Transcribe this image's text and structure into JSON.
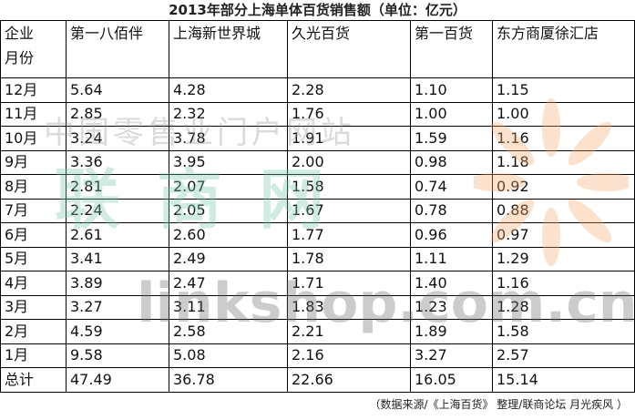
{
  "title": "2013年部分上海单体百货销售额（单位：亿元）",
  "table": {
    "corner": [
      "企业",
      "月份"
    ],
    "columns": [
      "第一八佰伴",
      "上海新世界城",
      "久光百货",
      "第一百货",
      "东方商厦徐汇店"
    ],
    "rows": [
      [
        "12月",
        "5.64",
        "4.28",
        "2.28",
        "1.10",
        "1.15"
      ],
      [
        "11月",
        "2.85",
        "2.32",
        "1.76",
        "1.00",
        "1.00"
      ],
      [
        "10月",
        "3.24",
        "3.78",
        "1.91",
        "1.59",
        "1.16"
      ],
      [
        "9月",
        "3.36",
        "3.95",
        "2.00",
        "0.98",
        "1.18"
      ],
      [
        "8月",
        "2.81",
        "2.07",
        "1.58",
        "0.74",
        "0.92"
      ],
      [
        "7月",
        "2.24",
        "2.05",
        "1.67",
        "0.78",
        "0.88"
      ],
      [
        "6月",
        "2.61",
        "2.60",
        "1.77",
        "0.96",
        "0.97"
      ],
      [
        "5月",
        "3.41",
        "2.49",
        "1.78",
        "1.11",
        "1.29"
      ],
      [
        "4月",
        "3.89",
        "2.47",
        "1.71",
        "1.40",
        "1.16"
      ],
      [
        "3月",
        "3.27",
        "3.11",
        "1.83",
        "1.23",
        "1.28"
      ],
      [
        "2月",
        "4.59",
        "2.58",
        "2.21",
        "1.89",
        "1.58"
      ],
      [
        "1月",
        "9.58",
        "5.08",
        "2.16",
        "3.27",
        "2.57"
      ],
      [
        "总计",
        "47.49",
        "36.78",
        "22.66",
        "16.05",
        "15.14"
      ]
    ]
  },
  "source": "（数据来源/《上海百货》 整理/联商论坛 月光疾风 ）",
  "watermark": {
    "site": "中国零售业门户网站",
    "brand": "联商网",
    "domain": "linkshop.com.cn"
  }
}
